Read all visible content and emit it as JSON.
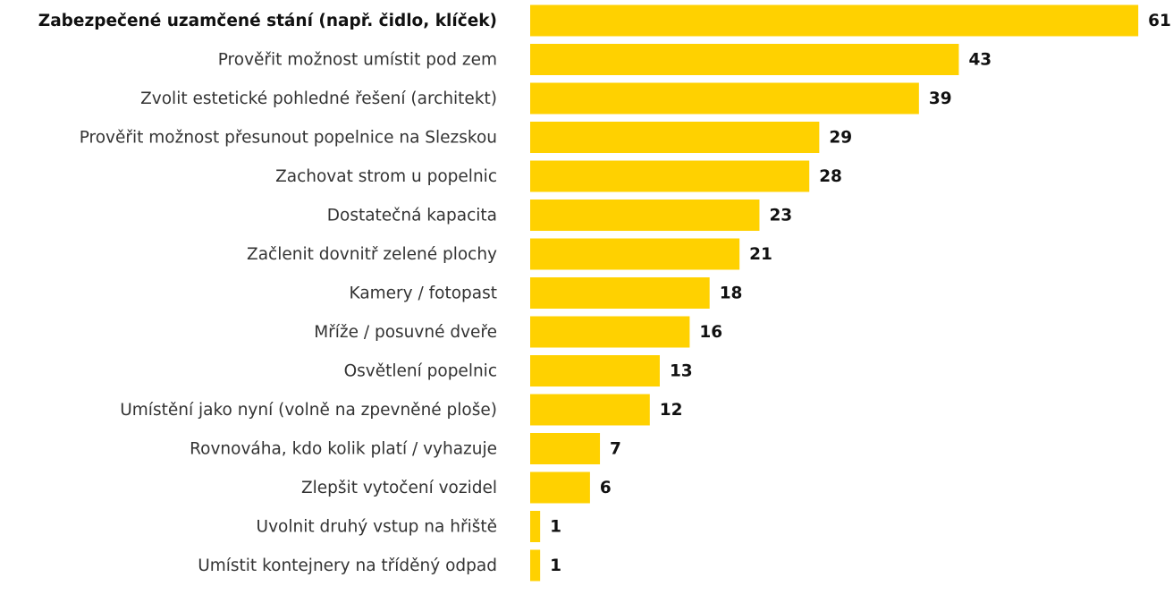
{
  "chart_data": {
    "type": "bar",
    "orientation": "horizontal",
    "categories": [
      "Zabezpečené uzamčené stání (např. čidlo, klíček)",
      "Prověřit možnost umístit pod zem",
      "Zvolit estetické pohledné řešení (architekt)",
      "Prověřit možnost přesunout popelnice na Slezskou",
      "Zachovat strom u popelnic",
      "Dostatečná kapacita",
      "Začlenit dovnitř zelené plochy",
      "Kamery / fotopast",
      "Mříže / posuvné dveře",
      "Osvětlení popelnic",
      "Umístění jako nyní (volně na zpevněné ploše)",
      "Rovnováha, kdo kolik platí / vyhazuje",
      "Zlepšit vytočení vozidel",
      "Uvolnit druhý vstup na hřiště",
      "Umístit kontejnery na tříděný odpad"
    ],
    "values": [
      61,
      43,
      39,
      29,
      28,
      23,
      21,
      18,
      16,
      13,
      12,
      7,
      6,
      1,
      1
    ],
    "color": "#ffd100"
  }
}
